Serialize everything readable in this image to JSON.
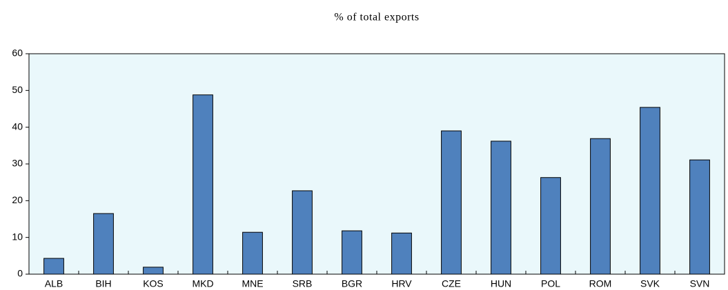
{
  "chart_data": {
    "type": "bar",
    "title": "% of total exports",
    "categories": [
      "ALB",
      "BIH",
      "KOS",
      "MKD",
      "MNE",
      "SRB",
      "BGR",
      "HRV",
      "CZE",
      "HUN",
      "POL",
      "ROM",
      "SVK",
      "SVN"
    ],
    "values": [
      4.3,
      16.5,
      1.9,
      48.8,
      11.4,
      22.7,
      11.8,
      11.2,
      39.0,
      36.2,
      26.3,
      36.9,
      45.4,
      31.1
    ],
    "color": "#4f81bd",
    "ylim": [
      0,
      60
    ],
    "yticks": [
      0,
      10,
      20,
      30,
      40,
      50,
      60
    ],
    "grid": false
  }
}
